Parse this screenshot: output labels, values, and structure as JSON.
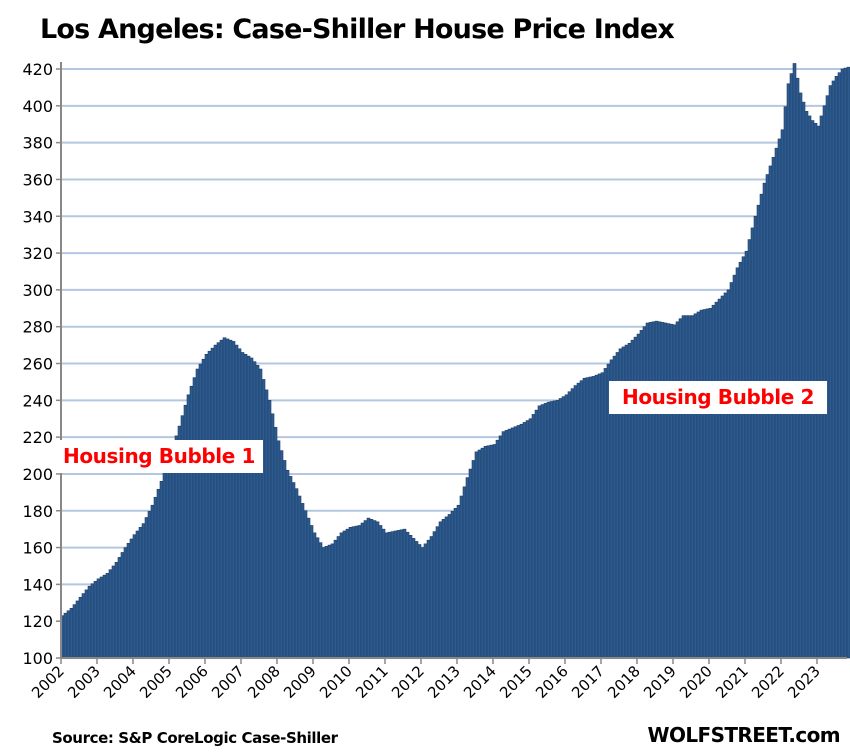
{
  "chart_data": {
    "type": "bar",
    "title": "Los Angeles: Case-Shiller House Price Index",
    "xlabel": "",
    "ylabel": "",
    "ylim": [
      100,
      420
    ],
    "yticks": [
      100,
      120,
      140,
      160,
      180,
      200,
      220,
      240,
      260,
      280,
      300,
      320,
      340,
      360,
      380,
      400,
      420
    ],
    "ytick_labels": [
      "100",
      "120",
      "140",
      "160",
      "180",
      "200",
      "220",
      "240",
      "260",
      "280",
      "300",
      "320",
      "340",
      "360",
      "380",
      "400",
      "420"
    ],
    "xtick_labels": [
      "2002",
      "2003",
      "2004",
      "2005",
      "2006",
      "2007",
      "2008",
      "2009",
      "2010",
      "2011",
      "2012",
      "2013",
      "2014",
      "2015",
      "2016",
      "2017",
      "2018",
      "2019",
      "2020",
      "2021",
      "2022",
      "2023"
    ],
    "grid": true,
    "frequency": "monthly",
    "start": "2002-01",
    "bar_color": "#2e5b8f",
    "grid_color": "#b4c7e0",
    "anchors": [
      [
        "2002-01",
        123
      ],
      [
        "2002-04",
        127
      ],
      [
        "2002-07",
        133
      ],
      [
        "2002-10",
        139
      ],
      [
        "2003-01",
        143
      ],
      [
        "2003-04",
        146
      ],
      [
        "2003-07",
        152
      ],
      [
        "2003-10",
        160
      ],
      [
        "2004-01",
        167
      ],
      [
        "2004-04",
        173
      ],
      [
        "2004-07",
        183
      ],
      [
        "2004-10",
        196
      ],
      [
        "2005-01",
        210
      ],
      [
        "2005-04",
        226
      ],
      [
        "2005-07",
        243
      ],
      [
        "2005-10",
        257
      ],
      [
        "2006-01",
        265
      ],
      [
        "2006-04",
        270
      ],
      [
        "2006-07",
        274
      ],
      [
        "2006-10",
        272
      ],
      [
        "2007-01",
        266
      ],
      [
        "2007-04",
        263
      ],
      [
        "2007-07",
        257
      ],
      [
        "2007-10",
        240
      ],
      [
        "2008-01",
        218
      ],
      [
        "2008-04",
        202
      ],
      [
        "2008-07",
        192
      ],
      [
        "2008-10",
        180
      ],
      [
        "2009-01",
        168
      ],
      [
        "2009-04",
        160
      ],
      [
        "2009-07",
        162
      ],
      [
        "2009-10",
        168
      ],
      [
        "2010-01",
        171
      ],
      [
        "2010-04",
        172
      ],
      [
        "2010-07",
        176
      ],
      [
        "2010-10",
        174
      ],
      [
        "2011-01",
        168
      ],
      [
        "2011-04",
        169
      ],
      [
        "2011-07",
        170
      ],
      [
        "2011-10",
        165
      ],
      [
        "2012-01",
        160
      ],
      [
        "2012-04",
        166
      ],
      [
        "2012-07",
        174
      ],
      [
        "2012-10",
        178
      ],
      [
        "2013-01",
        183
      ],
      [
        "2013-04",
        198
      ],
      [
        "2013-07",
        212
      ],
      [
        "2013-10",
        215
      ],
      [
        "2014-01",
        216
      ],
      [
        "2014-04",
        223
      ],
      [
        "2014-07",
        225
      ],
      [
        "2014-10",
        227
      ],
      [
        "2015-01",
        230
      ],
      [
        "2015-04",
        237
      ],
      [
        "2015-07",
        239
      ],
      [
        "2015-10",
        240
      ],
      [
        "2016-01",
        243
      ],
      [
        "2016-04",
        248
      ],
      [
        "2016-07",
        252
      ],
      [
        "2016-10",
        253
      ],
      [
        "2017-01",
        255
      ],
      [
        "2017-04",
        262
      ],
      [
        "2017-07",
        268
      ],
      [
        "2017-10",
        271
      ],
      [
        "2018-01",
        276
      ],
      [
        "2018-04",
        282
      ],
      [
        "2018-07",
        283
      ],
      [
        "2018-10",
        282
      ],
      [
        "2019-01",
        281
      ],
      [
        "2019-04",
        286
      ],
      [
        "2019-07",
        286
      ],
      [
        "2019-10",
        289
      ],
      [
        "2020-01",
        290
      ],
      [
        "2020-04",
        295
      ],
      [
        "2020-07",
        300
      ],
      [
        "2020-10",
        312
      ],
      [
        "2021-01",
        321
      ],
      [
        "2021-04",
        340
      ],
      [
        "2021-07",
        358
      ],
      [
        "2021-10",
        372
      ],
      [
        "2022-01",
        387
      ],
      [
        "2022-03",
        412
      ],
      [
        "2022-05",
        423
      ],
      [
        "2022-07",
        407
      ],
      [
        "2022-09",
        397
      ],
      [
        "2022-11",
        392
      ],
      [
        "2023-01",
        389
      ],
      [
        "2023-03",
        400
      ],
      [
        "2023-05",
        411
      ],
      [
        "2023-07",
        416
      ],
      [
        "2023-09",
        420
      ],
      [
        "2023-11",
        421
      ]
    ]
  },
  "annotations": {
    "bubble1": "Housing Bubble 1",
    "bubble2": "Housing Bubble 2"
  },
  "footer": {
    "source": "Source: S&P CoreLogic Case-Shiller",
    "brand": "WOLFSTREET.com"
  }
}
